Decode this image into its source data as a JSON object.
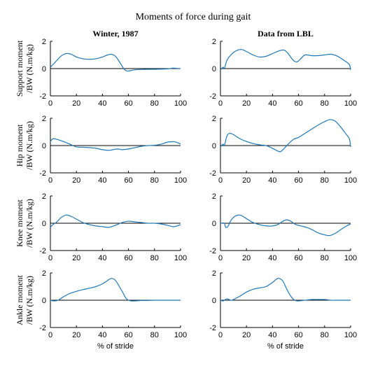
{
  "figure_title": "Moments of force during gait",
  "column_titles": [
    "Winter, 1987",
    "Data from LBL"
  ],
  "row_labels": [
    [
      "Support moment",
      "/BW (N.m/kg)"
    ],
    [
      "Hip moment",
      "/BW (N.m/kg)"
    ],
    [
      "Knee moment",
      "/BW (N.m/kg)"
    ],
    [
      "Ankle moment",
      "/BW (N.m/kg)"
    ]
  ],
  "colors": {
    "series": "#1f77b4",
    "zero_line": "#000000",
    "axes": "#000000"
  },
  "chart_data": [
    {
      "type": "line",
      "panel": "support-winter",
      "row": 0,
      "col": 0,
      "xlabel": "",
      "xlim": [
        0,
        100
      ],
      "ylim": [
        -2,
        2
      ],
      "xticks": [
        "0",
        "20",
        "40",
        "60",
        "80",
        "100"
      ],
      "yticks": [
        "2",
        "0",
        "-2"
      ],
      "zero_line": true,
      "x": [
        0,
        4,
        8,
        12,
        16,
        20,
        25,
        30,
        35,
        40,
        44,
        47,
        50,
        53,
        56,
        58,
        60,
        63,
        66,
        70,
        75,
        80,
        85,
        90,
        94,
        97,
        100
      ],
      "y": [
        0.1,
        0.5,
        0.9,
        1.1,
        1.05,
        0.85,
        0.72,
        0.68,
        0.72,
        0.85,
        1.0,
        1.05,
        0.9,
        0.5,
        0.05,
        -0.15,
        -0.18,
        -0.12,
        -0.08,
        -0.06,
        -0.05,
        -0.05,
        -0.04,
        -0.02,
        0.03,
        0.02,
        0.0
      ]
    },
    {
      "type": "line",
      "panel": "support-lbl",
      "row": 0,
      "col": 1,
      "xlabel": "",
      "xlim": [
        0,
        100
      ],
      "ylim": [
        -2,
        2
      ],
      "xticks": [
        "0",
        "20",
        "40",
        "60",
        "80",
        "100"
      ],
      "yticks": [
        "2",
        "0",
        "-2"
      ],
      "zero_line": true,
      "x": [
        0,
        2,
        3,
        5,
        8,
        12,
        16,
        20,
        25,
        30,
        35,
        40,
        45,
        49,
        52,
        56,
        59,
        62,
        65,
        70,
        75,
        80,
        85,
        90,
        95,
        99,
        100
      ],
      "y": [
        -0.1,
        0.1,
        0.0,
        0.6,
        1.0,
        1.3,
        1.4,
        1.25,
        1.0,
        0.85,
        0.9,
        1.1,
        1.3,
        1.35,
        1.1,
        0.6,
        0.5,
        0.75,
        1.0,
        0.95,
        0.95,
        1.0,
        1.05,
        0.9,
        0.6,
        0.3,
        -0.1
      ]
    },
    {
      "type": "line",
      "panel": "hip-winter",
      "row": 1,
      "col": 0,
      "xlabel": "",
      "xlim": [
        0,
        100
      ],
      "ylim": [
        -2,
        2
      ],
      "xticks": [
        "0",
        "20",
        "40",
        "60",
        "80",
        "100"
      ],
      "yticks": [
        "2",
        "0",
        "-2"
      ],
      "zero_line": true,
      "x": [
        0,
        2,
        5,
        10,
        15,
        20,
        25,
        30,
        35,
        40,
        45,
        48,
        52,
        55,
        60,
        65,
        70,
        75,
        80,
        85,
        90,
        95,
        98,
        100
      ],
      "y": [
        0.3,
        0.5,
        0.45,
        0.3,
        0.1,
        -0.1,
        -0.12,
        -0.15,
        -0.2,
        -0.3,
        -0.35,
        -0.3,
        -0.25,
        -0.3,
        -0.25,
        -0.15,
        -0.05,
        0.0,
        0.02,
        0.1,
        0.25,
        0.28,
        0.2,
        0.1
      ]
    },
    {
      "type": "line",
      "panel": "hip-lbl",
      "row": 1,
      "col": 1,
      "xlabel": "",
      "xlim": [
        0,
        100
      ],
      "ylim": [
        -2,
        2
      ],
      "xticks": [
        "0",
        "20",
        "40",
        "60",
        "80",
        "100"
      ],
      "yticks": [
        "2",
        "0",
        "-2"
      ],
      "zero_line": true,
      "x": [
        0,
        2,
        3,
        5,
        7,
        10,
        15,
        20,
        25,
        30,
        35,
        40,
        44,
        46,
        48,
        52,
        56,
        60,
        65,
        70,
        75,
        80,
        84,
        88,
        92,
        96,
        99,
        100
      ],
      "y": [
        -0.1,
        0.1,
        0.0,
        0.7,
        0.9,
        0.8,
        0.5,
        0.3,
        0.15,
        0.05,
        0.0,
        -0.2,
        -0.4,
        -0.45,
        -0.3,
        0.1,
        0.45,
        0.6,
        0.9,
        1.2,
        1.5,
        1.75,
        1.9,
        1.8,
        1.4,
        0.9,
        0.5,
        -0.1
      ]
    },
    {
      "type": "line",
      "panel": "knee-winter",
      "row": 2,
      "col": 0,
      "xlabel": "",
      "xlim": [
        0,
        100
      ],
      "ylim": [
        -2,
        2
      ],
      "xticks": [
        "0",
        "20",
        "40",
        "60",
        "80",
        "100"
      ],
      "yticks": [
        "2",
        "0",
        "-2"
      ],
      "zero_line": true,
      "x": [
        0,
        2,
        5,
        8,
        12,
        16,
        20,
        25,
        30,
        35,
        40,
        45,
        50,
        55,
        60,
        65,
        70,
        75,
        80,
        85,
        90,
        95,
        100
      ],
      "y": [
        -0.3,
        -0.1,
        0.1,
        0.4,
        0.6,
        0.5,
        0.3,
        0.05,
        -0.1,
        -0.2,
        -0.25,
        -0.3,
        -0.15,
        0.05,
        0.15,
        0.1,
        0.05,
        0.0,
        0.0,
        -0.05,
        -0.15,
        -0.25,
        -0.1
      ]
    },
    {
      "type": "line",
      "panel": "knee-lbl",
      "row": 2,
      "col": 1,
      "xlabel": "",
      "xlim": [
        0,
        100
      ],
      "ylim": [
        -2,
        2
      ],
      "xticks": [
        "0",
        "20",
        "40",
        "60",
        "80",
        "100"
      ],
      "yticks": [
        "2",
        "0",
        "-2"
      ],
      "zero_line": true,
      "x": [
        0,
        3,
        4,
        6,
        8,
        11,
        15,
        19,
        24,
        28,
        32,
        36,
        40,
        44,
        48,
        51,
        54,
        58,
        62,
        66,
        70,
        75,
        80,
        84,
        88,
        92,
        96,
        100
      ],
      "y": [
        0.0,
        0.0,
        -0.3,
        -0.2,
        0.2,
        0.5,
        0.6,
        0.4,
        0.1,
        -0.05,
        -0.15,
        -0.2,
        -0.2,
        -0.1,
        0.15,
        0.25,
        0.15,
        -0.1,
        -0.2,
        -0.3,
        -0.45,
        -0.7,
        -0.85,
        -0.9,
        -0.75,
        -0.5,
        -0.25,
        -0.05
      ]
    },
    {
      "type": "line",
      "panel": "ankle-winter",
      "row": 3,
      "col": 0,
      "xlabel": "% of stride",
      "xlim": [
        0,
        100
      ],
      "ylim": [
        -2,
        2
      ],
      "xticks": [
        "0",
        "20",
        "40",
        "60",
        "80",
        "100"
      ],
      "yticks": [
        "2",
        "0",
        "-2"
      ],
      "zero_line": true,
      "x": [
        0,
        3,
        6,
        10,
        15,
        20,
        25,
        30,
        35,
        40,
        44,
        47,
        50,
        53,
        56,
        58,
        60,
        62,
        65,
        70,
        75,
        80,
        85,
        90,
        95,
        100
      ],
      "y": [
        0.0,
        -0.05,
        0.0,
        0.25,
        0.5,
        0.65,
        0.78,
        0.88,
        1.0,
        1.2,
        1.45,
        1.6,
        1.45,
        1.0,
        0.5,
        0.15,
        0.0,
        -0.05,
        -0.05,
        -0.02,
        -0.02,
        0.0,
        0.0,
        0.0,
        0.0,
        0.0
      ]
    },
    {
      "type": "line",
      "panel": "ankle-lbl",
      "row": 3,
      "col": 1,
      "xlabel": "% of stride",
      "xlim": [
        0,
        100
      ],
      "ylim": [
        -2,
        2
      ],
      "xticks": [
        "0",
        "20",
        "40",
        "60",
        "80",
        "100"
      ],
      "yticks": [
        "2",
        "0",
        "-2"
      ],
      "zero_line": true,
      "x": [
        0,
        2,
        3,
        5,
        8,
        10,
        15,
        20,
        25,
        30,
        35,
        40,
        43,
        45,
        48,
        51,
        54,
        57,
        60,
        65,
        70,
        75,
        80,
        85,
        90,
        95,
        100
      ],
      "y": [
        0.0,
        -0.05,
        0.0,
        0.1,
        0.0,
        0.05,
        0.3,
        0.6,
        0.8,
        0.9,
        1.0,
        1.3,
        1.55,
        1.6,
        1.4,
        0.8,
        0.3,
        0.0,
        -0.05,
        0.0,
        0.05,
        0.05,
        0.05,
        0.0,
        0.0,
        0.0,
        0.0
      ]
    }
  ]
}
